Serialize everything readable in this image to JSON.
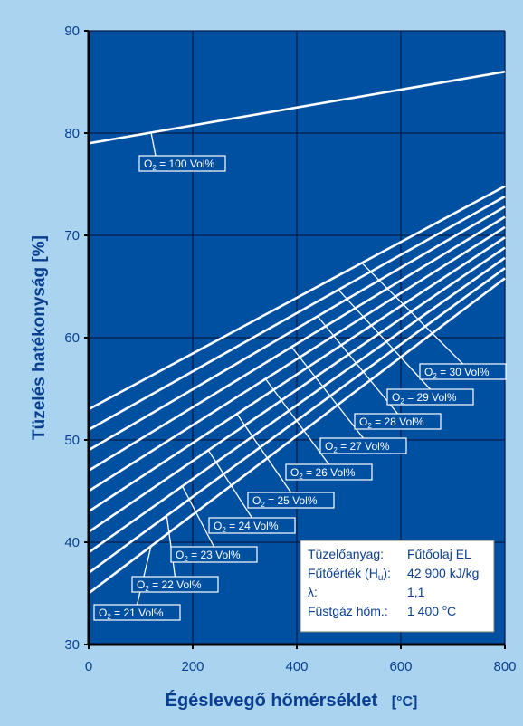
{
  "chart_data": {
    "type": "line",
    "xlabel": "Égéslevegő hőmérséklet",
    "xunit": "[°C]",
    "ylabel": "Tüzelés hatékonyság [%]",
    "xlim": [
      0,
      800
    ],
    "ylim": [
      30,
      90
    ],
    "xticks": [
      "0",
      "200",
      "400",
      "600",
      "800"
    ],
    "yticks": [
      "30",
      "40",
      "50",
      "60",
      "70",
      "80",
      "90"
    ],
    "grid": true,
    "series": [
      {
        "name": "O2 = 100 Vol%",
        "label_prefix": "O",
        "label_sub": "2",
        "label_suffix": " = 100 Vol%",
        "x": [
          0,
          800
        ],
        "y": [
          79,
          86
        ]
      },
      {
        "name": "O2 = 21 Vol%",
        "label_prefix": "O",
        "label_sub": "2",
        "label_suffix": " = 21 Vol%",
        "x": [
          0,
          800
        ],
        "y": [
          35,
          65.8
        ]
      },
      {
        "name": "O2 = 22 Vol%",
        "label_prefix": "O",
        "label_sub": "2",
        "label_suffix": " = 22 Vol%",
        "x": [
          0,
          800
        ],
        "y": [
          37,
          66.8
        ]
      },
      {
        "name": "O2 = 23 Vol%",
        "label_prefix": "O",
        "label_sub": "2",
        "label_suffix": " = 23 Vol%",
        "x": [
          0,
          800
        ],
        "y": [
          39,
          67.8
        ]
      },
      {
        "name": "O2 = 24 Vol%",
        "label_prefix": "O",
        "label_sub": "2",
        "label_suffix": " = 24 Vol%",
        "x": [
          0,
          800
        ],
        "y": [
          41,
          68.8
        ]
      },
      {
        "name": "O2 = 25 Vol%",
        "label_prefix": "O",
        "label_sub": "2",
        "label_suffix": " = 25 Vol%",
        "x": [
          0,
          800
        ],
        "y": [
          43,
          69.8
        ]
      },
      {
        "name": "O2 = 26 Vol%",
        "label_prefix": "O",
        "label_sub": "2",
        "label_suffix": " = 26 Vol%",
        "x": [
          0,
          800
        ],
        "y": [
          45,
          70.8
        ]
      },
      {
        "name": "O2 = 27 Vol%",
        "label_prefix": "O",
        "label_sub": "2",
        "label_suffix": " = 27 Vol%",
        "x": [
          0,
          800
        ],
        "y": [
          47,
          71.8
        ]
      },
      {
        "name": "O2 = 28 Vol%",
        "label_prefix": "O",
        "label_sub": "2",
        "label_suffix": " = 28 Vol%",
        "x": [
          0,
          800
        ],
        "y": [
          49,
          72.8
        ]
      },
      {
        "name": "O2 = 29 Vol%",
        "label_prefix": "O",
        "label_sub": "2",
        "label_suffix": " = 29 Vol%",
        "x": [
          0,
          800
        ],
        "y": [
          51,
          73.8
        ]
      },
      {
        "name": "O2 = 30 Vol%",
        "label_prefix": "O",
        "label_sub": "2",
        "label_suffix": " = 30 Vol%",
        "x": [
          0,
          800
        ],
        "y": [
          53,
          74.8
        ]
      }
    ],
    "info_box": {
      "rows": [
        {
          "key": "Tüzelőanyag:",
          "key_sub": "",
          "key_after": "",
          "value": "Fűtőolaj EL",
          "value_sup": "",
          "value_after": ""
        },
        {
          "key": "Fűtőérték (H",
          "key_sub": "u",
          "key_after": "):",
          "value": "42 900 kJ/kg",
          "value_sup": "",
          "value_after": ""
        },
        {
          "key": "λ:",
          "key_sub": "",
          "key_after": "",
          "value": "1,1",
          "value_sup": "",
          "value_after": ""
        },
        {
          "key": "Füstgáz hőm.:",
          "key_sub": "",
          "key_after": "",
          "value": "1 400 ",
          "value_sup": "o",
          "value_after": "C"
        }
      ]
    },
    "colors": {
      "background": "#a9d3ef",
      "plot_area": "#0050a2",
      "lines": "#ffffff",
      "grid": "#0a1c4a",
      "text": "#0a3f8f",
      "info_box": "#ffffff"
    }
  }
}
